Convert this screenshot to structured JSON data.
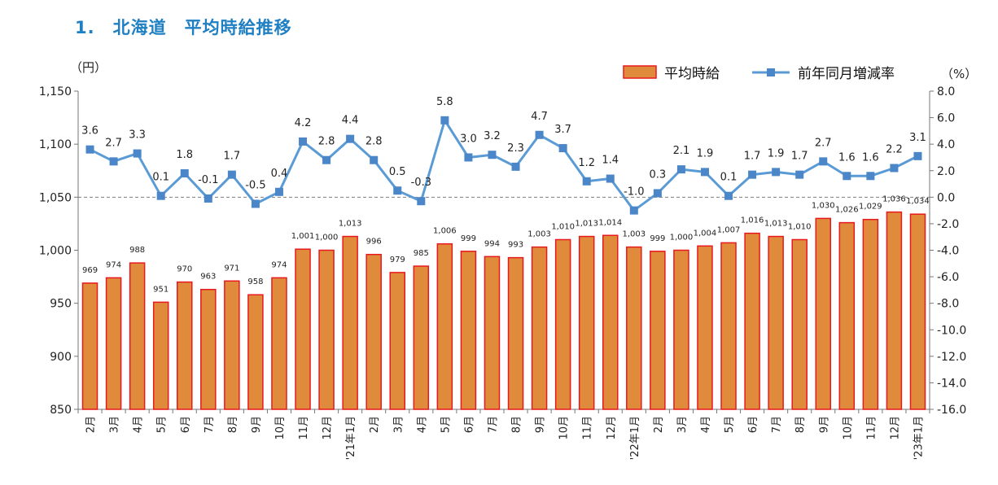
{
  "page_title": "1.　北海道　平均時給推移",
  "chart_data": {
    "type": "bar+line",
    "title": "1.　北海道　平均時給推移",
    "left_unit": "（円）",
    "right_unit": "（%）",
    "categories": [
      "2月",
      "3月",
      "4月",
      "5月",
      "6月",
      "7月",
      "8月",
      "9月",
      "10月",
      "11月",
      "12月",
      "'21年1月",
      "2月",
      "3月",
      "4月",
      "5月",
      "6月",
      "7月",
      "8月",
      "9月",
      "10月",
      "11月",
      "12月",
      "'22年1月",
      "2月",
      "3月",
      "4月",
      "5月",
      "6月",
      "7月",
      "8月",
      "9月",
      "10月",
      "11月",
      "12月",
      "'23年1月"
    ],
    "series": [
      {
        "name": "平均時給",
        "type": "bar",
        "axis": "left",
        "values": [
          969,
          974,
          988,
          951,
          970,
          963,
          971,
          958,
          974,
          1001,
          1000,
          1013,
          996,
          979,
          985,
          1006,
          999,
          994,
          993,
          1003,
          1010,
          1013,
          1014,
          1003,
          999,
          1000,
          1004,
          1007,
          1016,
          1013,
          1010,
          1030,
          1026,
          1029,
          1036,
          1034
        ],
        "labels": [
          "969",
          "974",
          "988",
          "951",
          "970",
          "963",
          "971",
          "958",
          "974",
          "1,001",
          "1,000",
          "1,013",
          "996",
          "979",
          "985",
          "1,006",
          "999",
          "994",
          "993",
          "1,003",
          "1,010",
          "1,013",
          "1,014",
          "1,003",
          "999",
          "1,000",
          "1,004",
          "1,007",
          "1,016",
          "1,013",
          "1,010",
          "1,030",
          "1,026",
          "1,029",
          "1,036",
          "1,034"
        ],
        "color": "#e08a3c",
        "stroke": "#e8191e"
      },
      {
        "name": "前年同月増減率",
        "type": "line",
        "axis": "right",
        "values": [
          3.6,
          2.7,
          3.3,
          0.1,
          1.8,
          -0.1,
          1.7,
          -0.5,
          0.4,
          4.2,
          2.8,
          4.4,
          2.8,
          0.5,
          -0.3,
          5.8,
          3.0,
          3.2,
          2.3,
          4.7,
          3.7,
          1.2,
          1.4,
          -1.0,
          0.3,
          2.1,
          1.9,
          0.1,
          1.7,
          1.9,
          1.7,
          2.7,
          1.6,
          1.6,
          2.2,
          3.1
        ],
        "labels": [
          "3.6",
          "2.7",
          "3.3",
          "0.1",
          "1.8",
          "-0.1",
          "1.7",
          "-0.5",
          "0.4",
          "4.2",
          "2.8",
          "4.4",
          "2.8",
          "0.5",
          "-0.3",
          "5.8",
          "3.0",
          "3.2",
          "2.3",
          "4.7",
          "3.7",
          "1.2",
          "1.4",
          "-1.0",
          "0.3",
          "2.1",
          "1.9",
          "0.1",
          "1.7",
          "1.9",
          "1.7",
          "2.7",
          "1.6",
          "1.6",
          "2.2",
          "3.1"
        ],
        "color": "#5b9bd5"
      }
    ],
    "left_axis": {
      "min": 850,
      "max": 1150,
      "step": 50,
      "ticks": [
        "850",
        "900",
        "950",
        "1,000",
        "1,050",
        "1,100",
        "1,150"
      ]
    },
    "right_axis": {
      "min": -16,
      "max": 8,
      "step": 2,
      "ticks": [
        "-16.0",
        "-14.0",
        "-12.0",
        "-10.0",
        "-8.0",
        "-6.0",
        "-4.0",
        "-2.0",
        "0.0",
        "2.0",
        "4.0",
        "6.0",
        "8.0"
      ]
    },
    "zero_reference_line": "dashed",
    "legend_position": "top-right"
  }
}
